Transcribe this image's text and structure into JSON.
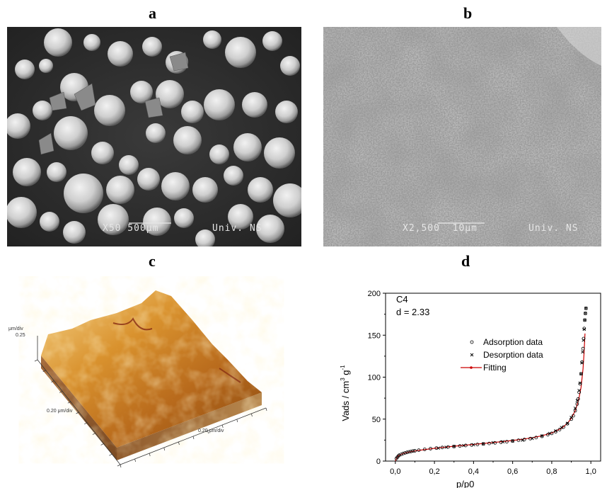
{
  "panels": {
    "a": {
      "label": "a",
      "caption_left": "X50 500μm",
      "caption_right": "Univ. NS"
    },
    "b": {
      "label": "b",
      "caption_left": "X2,500  10μm",
      "caption_right": "Univ. NS"
    },
    "c": {
      "label": "c",
      "z_unit": "μm/div",
      "z_value": "0.25",
      "x_axis": "0.20 μm/div",
      "y_axis": "0.20 μm/div"
    },
    "d": {
      "label": "d"
    }
  },
  "chart_data": {
    "type": "scatter",
    "xlabel": "p/p0",
    "ylabel_main": "Vads / cm",
    "ylabel_sup1": "3",
    "ylabel_mid": " g",
    "ylabel_sup2": "-1",
    "xlim": [
      -0.05,
      1.05
    ],
    "ylim": [
      0,
      200
    ],
    "xticks": [
      "0,0",
      "0,2",
      "0,4",
      "0,6",
      "0,8",
      "1,0"
    ],
    "xtick_values": [
      0.0,
      0.2,
      0.4,
      0.6,
      0.8,
      1.0
    ],
    "yticks": [
      "0",
      "50",
      "100",
      "150",
      "200"
    ],
    "ytick_values": [
      0,
      50,
      100,
      150,
      200
    ],
    "annotation_line1": "C4",
    "annotation_line2": "d = 2.33",
    "legend_placement": "center-right",
    "series": [
      {
        "name": "Adsorption data",
        "marker": "circle",
        "color": "#000000",
        "x": [
          0.005,
          0.01,
          0.015,
          0.02,
          0.03,
          0.04,
          0.05,
          0.06,
          0.07,
          0.08,
          0.09,
          0.1,
          0.12,
          0.15,
          0.18,
          0.21,
          0.24,
          0.27,
          0.3,
          0.33,
          0.36,
          0.39,
          0.42,
          0.45,
          0.48,
          0.51,
          0.54,
          0.57,
          0.6,
          0.63,
          0.66,
          0.69,
          0.72,
          0.75,
          0.78,
          0.8,
          0.82,
          0.84,
          0.86,
          0.88,
          0.9,
          0.91,
          0.92,
          0.93,
          0.935,
          0.94,
          0.945,
          0.95,
          0.955,
          0.96,
          0.963,
          0.966,
          0.969,
          0.972,
          0.975
        ],
        "y": [
          3,
          4.5,
          6,
          7,
          8,
          9,
          9.8,
          10.4,
          11,
          11.5,
          12,
          12.3,
          13,
          14,
          14.8,
          15.5,
          16.2,
          16.8,
          17.4,
          18,
          18.6,
          19.2,
          19.8,
          20.4,
          21,
          21.7,
          22.4,
          23.1,
          23.9,
          24.8,
          25.7,
          26.8,
          28,
          29.5,
          31.5,
          33,
          35,
          37.5,
          40.5,
          44.5,
          50,
          54,
          60,
          68,
          74,
          82,
          92,
          104,
          118,
          134,
          146,
          158,
          168,
          176,
          182
        ]
      },
      {
        "name": "Desorption data",
        "marker": "cross",
        "color": "#000000",
        "x": [
          0.975,
          0.972,
          0.969,
          0.966,
          0.962,
          0.958,
          0.954,
          0.95,
          0.945,
          0.94,
          0.93,
          0.92,
          0.9,
          0.88,
          0.85,
          0.82,
          0.79,
          0.75,
          0.7,
          0.65,
          0.6,
          0.55,
          0.5,
          0.45,
          0.4,
          0.35,
          0.3,
          0.26,
          0.22
        ],
        "y": [
          182,
          176,
          168,
          157,
          144,
          130,
          117,
          104,
          93,
          84,
          72,
          63,
          52,
          45,
          40,
          36,
          33,
          30,
          27,
          25,
          24,
          23,
          22,
          20.5,
          19.5,
          18.5,
          17.5,
          16.5,
          15.5
        ]
      },
      {
        "name": "Fitting",
        "marker": "line",
        "color": "#cc0000",
        "x": [
          0.0,
          0.01,
          0.02,
          0.04,
          0.06,
          0.08,
          0.1,
          0.15,
          0.2,
          0.25,
          0.3,
          0.35,
          0.4,
          0.45,
          0.5,
          0.55,
          0.6,
          0.65,
          0.7,
          0.75,
          0.8,
          0.85,
          0.88,
          0.9,
          0.92,
          0.93,
          0.94,
          0.95,
          0.96,
          0.965,
          0.97
        ],
        "y": [
          0,
          5,
          7,
          9,
          10.3,
          11.3,
          12.1,
          13.7,
          15.2,
          16.5,
          17.7,
          18.8,
          19.9,
          21,
          22.1,
          23.3,
          24.6,
          26,
          27.8,
          30.2,
          33.5,
          39,
          45,
          51,
          60,
          67,
          76,
          88,
          110,
          128,
          152
        ]
      }
    ]
  }
}
